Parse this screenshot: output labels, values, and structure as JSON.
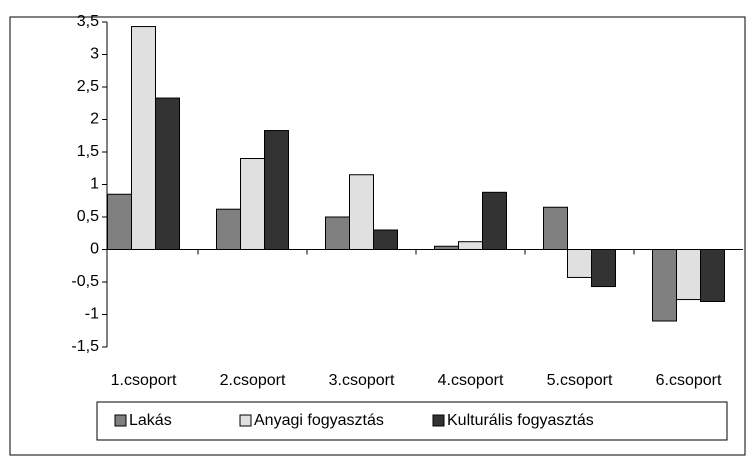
{
  "chart_data": {
    "type": "bar",
    "categories": [
      "1.csoport",
      "2.csoport",
      "3.csoport",
      "4.csoport",
      "5.csoport",
      "6.csoport"
    ],
    "series": [
      {
        "name": "Lakás",
        "color": "#808080",
        "values": [
          0.85,
          0.62,
          0.5,
          0.05,
          0.65,
          -1.1
        ]
      },
      {
        "name": "Anyagi fogyasztás",
        "color": "#e0e0e0",
        "values": [
          3.43,
          1.4,
          1.15,
          0.12,
          -0.43,
          -0.77
        ]
      },
      {
        "name": "Kulturális fogyasztás",
        "color": "#333333",
        "values": [
          2.33,
          1.83,
          0.3,
          0.88,
          -0.57,
          -0.8
        ]
      }
    ],
    "ylim": [
      -1.5,
      3.5
    ],
    "yticks": [
      {
        "value": -1.5,
        "label": "-1,5"
      },
      -1,
      {
        "value": -0.5,
        "label": "-0,5"
      },
      0,
      {
        "value": 0.5,
        "label": "0,5"
      },
      1,
      {
        "value": 1.5,
        "label": "1,5"
      },
      2,
      {
        "value": 2.5,
        "label": "2,5"
      },
      3,
      {
        "value": 3.5,
        "label": "3,5"
      }
    ],
    "grid": false,
    "legend": "bottom"
  }
}
